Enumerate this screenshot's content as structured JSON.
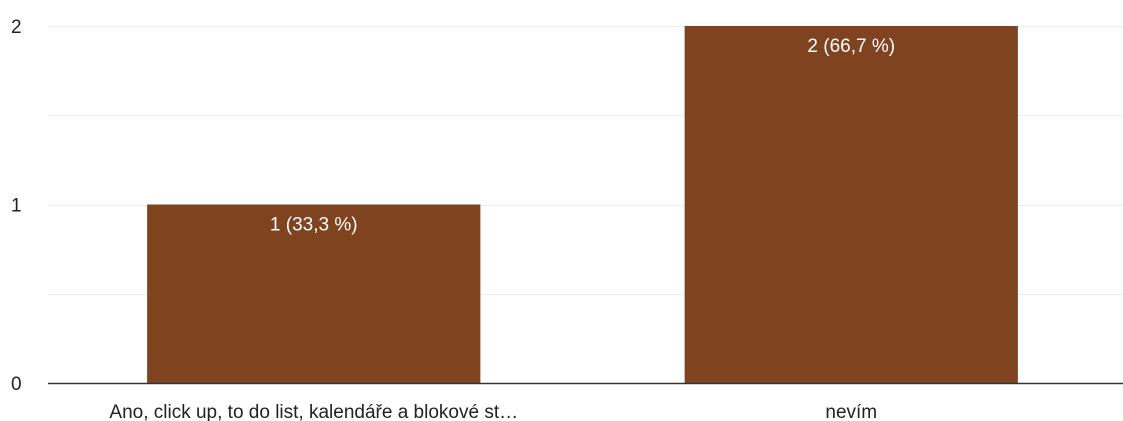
{
  "chart_data": {
    "type": "bar",
    "categories": [
      "Ano, click up, to do list, kalendáře a blokové st…",
      "nevím"
    ],
    "values": [
      1,
      2
    ],
    "data_labels": [
      "1 (33,3 %)",
      "2 (66,7 %)"
    ],
    "ylim": [
      0,
      2
    ],
    "yticks": [
      0,
      1,
      2
    ],
    "y_tick_labels": [
      "0",
      "1",
      "2"
    ],
    "grid": true,
    "legend": "none",
    "bar_color": "#7f4320",
    "grid_color": "#ececec",
    "axis_color": "#333333"
  }
}
